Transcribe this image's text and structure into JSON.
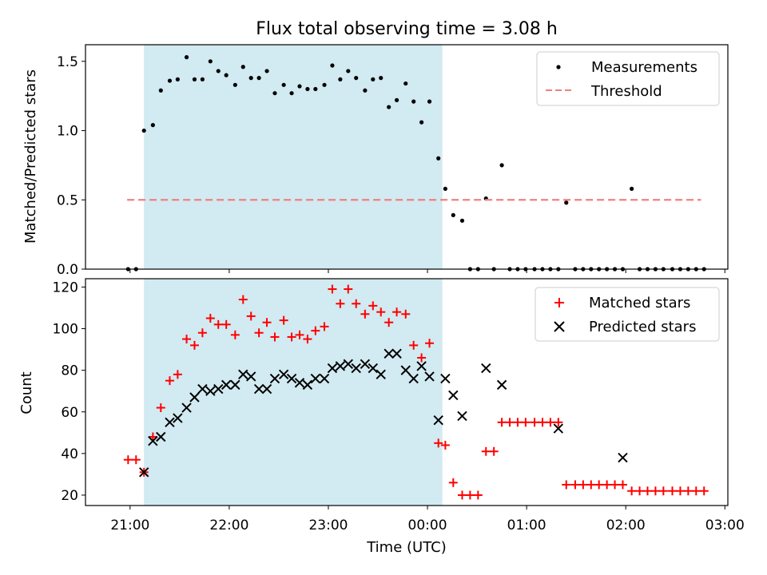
{
  "figure": {
    "title": "Flux total observing time = 3.08 h",
    "xlabel": "Time (UTC)",
    "x_ticks": [
      "21:00",
      "22:00",
      "23:00",
      "00:00",
      "01:00",
      "02:00",
      "03:00"
    ],
    "x_tick_values": [
      21.0,
      22.0,
      23.0,
      24.0,
      25.0,
      26.0,
      27.0
    ],
    "xlim": [
      20.55,
      27.03
    ],
    "shaded_region": {
      "start": 21.14,
      "end": 24.15,
      "color": "#add8e6"
    }
  },
  "chart_data": [
    {
      "type": "scatter",
      "ylabel": "Matched/Predicted stars",
      "ylim": [
        0.0,
        1.62
      ],
      "y_ticks": [
        "0.0",
        "0.5",
        "1.0",
        "1.5"
      ],
      "y_tick_values": [
        0.0,
        0.5,
        1.0,
        1.5
      ],
      "legend_position": "top-right",
      "series": [
        {
          "name": "Measurements",
          "marker": "dot",
          "color": "#000000",
          "x": [
            20.98,
            21.06,
            21.14,
            21.23,
            21.31,
            21.4,
            21.48,
            21.57,
            21.65,
            21.73,
            21.81,
            21.89,
            21.97,
            22.06,
            22.14,
            22.22,
            22.3,
            22.38,
            22.46,
            22.55,
            22.63,
            22.71,
            22.79,
            22.87,
            22.96,
            23.04,
            23.12,
            23.2,
            23.28,
            23.37,
            23.45,
            23.53,
            23.61,
            23.69,
            23.78,
            23.86,
            23.94,
            24.02,
            24.11,
            24.18,
            24.26,
            24.35,
            24.43,
            24.51,
            24.59,
            24.67,
            24.75,
            24.83,
            24.91,
            24.99,
            25.08,
            25.16,
            25.24,
            25.32,
            25.4,
            25.49,
            25.57,
            25.65,
            25.73,
            25.81,
            25.89,
            25.97,
            26.06,
            26.14,
            26.22,
            26.3,
            26.38,
            26.47,
            26.55,
            26.63,
            26.71,
            26.79
          ],
          "values": [
            0.0,
            0.0,
            1.0,
            1.04,
            1.29,
            1.36,
            1.37,
            1.53,
            1.37,
            1.37,
            1.5,
            1.43,
            1.4,
            1.33,
            1.46,
            1.38,
            1.38,
            1.43,
            1.27,
            1.33,
            1.27,
            1.32,
            1.3,
            1.3,
            1.33,
            1.47,
            1.37,
            1.43,
            1.38,
            1.29,
            1.37,
            1.38,
            1.17,
            1.22,
            1.34,
            1.21,
            1.06,
            1.21,
            0.8,
            0.58,
            0.39,
            0.35,
            0.0,
            0.0,
            0.51,
            0.0,
            0.75,
            0.0,
            0.0,
            0.0,
            0.0,
            0.0,
            0.0,
            0.0,
            0.48,
            0.0,
            0.0,
            0.0,
            0.0,
            0.0,
            0.0,
            0.0,
            0.58,
            0.0,
            0.0,
            0.0,
            0.0,
            0.0,
            0.0,
            0.0,
            0.0,
            0.0
          ]
        },
        {
          "name": "Threshold",
          "marker": "dashed-line",
          "color": "#f08080",
          "x": [
            20.97,
            26.76
          ],
          "values": [
            0.5,
            0.5
          ]
        }
      ]
    },
    {
      "type": "scatter",
      "ylabel": "Count",
      "ylim": [
        15,
        124
      ],
      "y_ticks": [
        "20",
        "40",
        "60",
        "80",
        "100",
        "120"
      ],
      "y_tick_values": [
        20,
        40,
        60,
        80,
        100,
        120
      ],
      "legend_position": "top-right",
      "series": [
        {
          "name": "Matched stars",
          "marker": "plus",
          "color": "#ff0000",
          "x": [
            20.98,
            21.06,
            21.14,
            21.23,
            21.31,
            21.4,
            21.48,
            21.57,
            21.65,
            21.73,
            21.81,
            21.89,
            21.97,
            22.06,
            22.14,
            22.22,
            22.3,
            22.38,
            22.46,
            22.55,
            22.63,
            22.71,
            22.79,
            22.87,
            22.96,
            23.04,
            23.12,
            23.2,
            23.28,
            23.37,
            23.45,
            23.53,
            23.61,
            23.69,
            23.78,
            23.86,
            23.94,
            24.02,
            24.11,
            24.18,
            24.26,
            24.35,
            24.43,
            24.51,
            24.59,
            24.67,
            24.75,
            24.83,
            24.91,
            24.99,
            25.08,
            25.16,
            25.24,
            25.32,
            25.4,
            25.49,
            25.57,
            25.65,
            25.73,
            25.81,
            25.89,
            25.97,
            26.06,
            26.14,
            26.22,
            26.3,
            26.38,
            26.47,
            26.55,
            26.63,
            26.71,
            26.79
          ],
          "values": [
            37,
            37,
            31,
            48,
            62,
            75,
            78,
            95,
            92,
            98,
            105,
            102,
            102,
            97,
            114,
            106,
            98,
            103,
            96,
            104,
            96,
            97,
            95,
            99,
            101,
            119,
            112,
            119,
            112,
            107,
            111,
            108,
            103,
            108,
            107,
            92,
            86,
            93,
            45,
            44,
            26,
            20,
            20,
            20,
            41,
            41,
            55,
            55,
            55,
            55,
            55,
            55,
            55,
            55,
            25,
            25,
            25,
            25,
            25,
            25,
            25,
            25,
            22,
            22,
            22,
            22,
            22,
            22,
            22,
            22,
            22,
            22
          ]
        },
        {
          "name": "Predicted stars",
          "marker": "x",
          "color": "#000000",
          "x": [
            21.14,
            21.23,
            21.31,
            21.4,
            21.48,
            21.57,
            21.65,
            21.73,
            21.81,
            21.89,
            21.97,
            22.06,
            22.14,
            22.22,
            22.3,
            22.38,
            22.46,
            22.55,
            22.63,
            22.71,
            22.79,
            22.87,
            22.96,
            23.04,
            23.12,
            23.2,
            23.28,
            23.37,
            23.45,
            23.53,
            23.61,
            23.69,
            23.78,
            23.86,
            23.94,
            24.02,
            24.11,
            24.18,
            24.26,
            24.35,
            24.59,
            24.75,
            25.32,
            25.97
          ],
          "values": [
            31,
            46,
            48,
            55,
            57,
            62,
            67,
            71,
            70,
            71,
            73,
            73,
            78,
            77,
            71,
            71,
            76,
            78,
            76,
            74,
            73,
            76,
            76,
            81,
            82,
            83,
            81,
            83,
            81,
            78,
            88,
            88,
            80,
            76,
            82,
            77,
            56,
            76,
            68,
            58,
            81,
            73,
            52,
            38
          ]
        }
      ]
    }
  ]
}
